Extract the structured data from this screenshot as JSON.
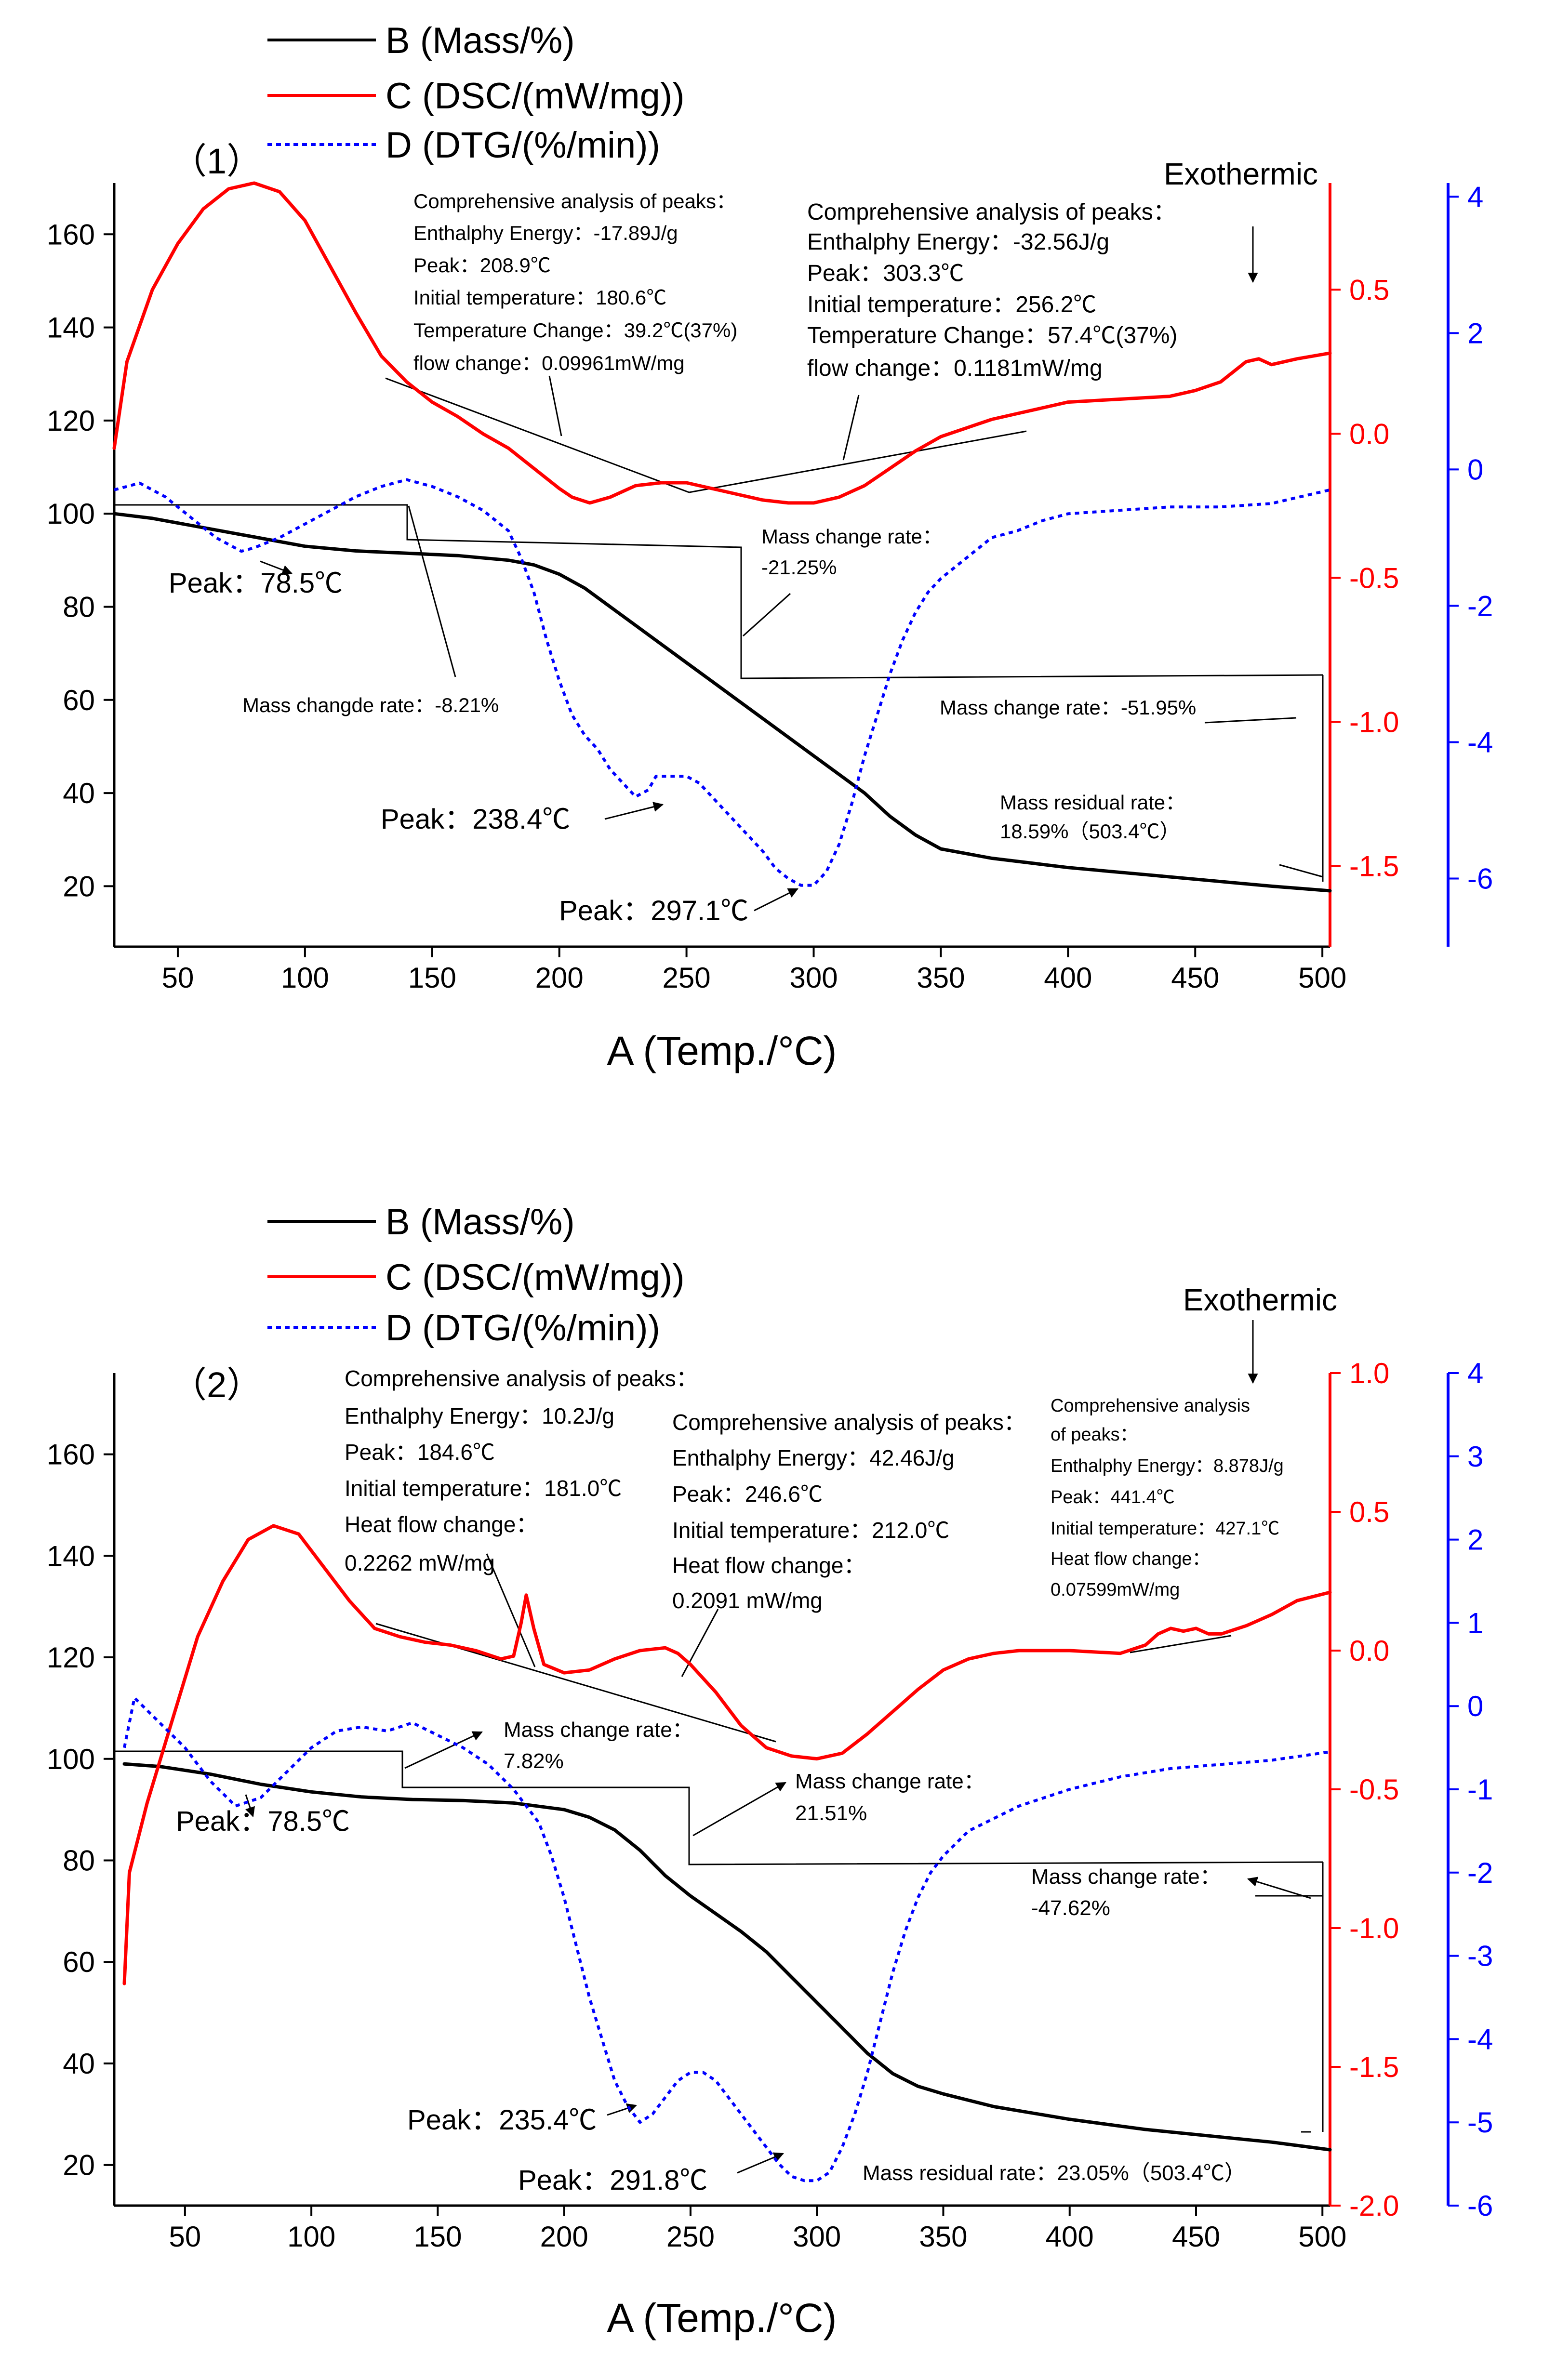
{
  "legend": {
    "B": "B (Mass/%)",
    "C": "C (DSC/(mW/mg))",
    "D": "D (DTG/(%/min))"
  },
  "colors": {
    "B": "#000000",
    "C": "#ff0000",
    "D": "#0000ff"
  },
  "chart_data": [
    {
      "type": "line",
      "panel_label": "（1）",
      "xlabel": "A (Temp./°C)",
      "xlim": [
        25,
        503
      ],
      "xticks": [
        50,
        100,
        150,
        200,
        250,
        300,
        350,
        400,
        450,
        500
      ],
      "y_left": {
        "lim": [
          7,
          171
        ],
        "ticks": [
          20,
          40,
          60,
          80,
          100,
          120,
          140,
          160
        ]
      },
      "y_right": {
        "lim": [
          -1.78,
          0.87
        ],
        "ticks": [
          "-1.5",
          "-1.0",
          "-0.5",
          "0.0",
          "0.5"
        ]
      },
      "y_right2": {
        "lim": [
          -7,
          4.2
        ],
        "ticks": [
          -6,
          -4,
          -2,
          0,
          2,
          4
        ]
      },
      "series": [
        {
          "name": "B",
          "axis": "left",
          "style": "solid",
          "x": [
            25,
            40,
            60,
            80,
            100,
            120,
            140,
            160,
            180,
            190,
            200,
            210,
            220,
            230,
            240,
            250,
            260,
            270,
            280,
            290,
            300,
            310,
            320,
            330,
            340,
            350,
            370,
            400,
            430,
            460,
            480,
            503
          ],
          "values": [
            100,
            99,
            97,
            95,
            93,
            92,
            91.5,
            91,
            90,
            89,
            87,
            84,
            80,
            76,
            72,
            68,
            64,
            60,
            56,
            52,
            48,
            44,
            40,
            35,
            31,
            28,
            26,
            24,
            22.5,
            21,
            20,
            19
          ]
        },
        {
          "name": "C",
          "axis": "right",
          "style": "solid",
          "x": [
            25,
            30,
            40,
            50,
            60,
            70,
            80,
            90,
            100,
            110,
            120,
            130,
            140,
            150,
            160,
            170,
            180,
            190,
            200,
            205,
            212,
            220,
            230,
            240,
            250,
            260,
            270,
            280,
            290,
            300,
            310,
            320,
            330,
            340,
            350,
            360,
            370,
            380,
            400,
            420,
            440,
            450,
            460,
            470,
            475,
            480,
            490,
            503
          ],
          "values": [
            -0.05,
            0.25,
            0.5,
            0.66,
            0.78,
            0.85,
            0.87,
            0.84,
            0.74,
            0.58,
            0.42,
            0.27,
            0.18,
            0.11,
            0.06,
            0.0,
            -0.05,
            -0.12,
            -0.19,
            -0.22,
            -0.24,
            -0.22,
            -0.18,
            -0.17,
            -0.17,
            -0.19,
            -0.21,
            -0.23,
            -0.24,
            -0.24,
            -0.22,
            -0.18,
            -0.12,
            -0.06,
            -0.01,
            0.02,
            0.05,
            0.07,
            0.11,
            0.12,
            0.13,
            0.15,
            0.18,
            0.25,
            0.26,
            0.24,
            0.26,
            0.28
          ]
        },
        {
          "name": "D",
          "axis": "right2",
          "style": "dotted",
          "x": [
            25,
            35,
            45,
            55,
            65,
            75,
            80,
            90,
            100,
            110,
            120,
            130,
            140,
            150,
            160,
            170,
            180,
            185,
            190,
            195,
            200,
            205,
            210,
            215,
            220,
            225,
            230,
            235,
            238,
            245,
            250,
            255,
            260,
            265,
            270,
            275,
            280,
            285,
            290,
            295,
            300,
            305,
            310,
            315,
            320,
            325,
            330,
            335,
            340,
            345,
            350,
            360,
            370,
            380,
            390,
            400,
            420,
            440,
            460,
            480,
            503
          ],
          "values": [
            -0.3,
            -0.2,
            -0.4,
            -0.7,
            -1.0,
            -1.2,
            -1.15,
            -1.0,
            -0.8,
            -0.6,
            -0.4,
            -0.25,
            -0.15,
            -0.25,
            -0.4,
            -0.6,
            -0.9,
            -1.3,
            -1.8,
            -2.5,
            -3.1,
            -3.6,
            -3.9,
            -4.1,
            -4.4,
            -4.6,
            -4.8,
            -4.7,
            -4.5,
            -4.5,
            -4.5,
            -4.6,
            -4.8,
            -5.0,
            -5.2,
            -5.4,
            -5.6,
            -5.85,
            -6.0,
            -6.1,
            -6.1,
            -5.9,
            -5.5,
            -4.9,
            -4.2,
            -3.6,
            -3.0,
            -2.5,
            -2.1,
            -1.8,
            -1.6,
            -1.3,
            -1.0,
            -0.9,
            -0.75,
            -0.65,
            -0.6,
            -0.55,
            -0.55,
            -0.5,
            -0.3
          ]
        }
      ],
      "annotations": {
        "exo": "Exothermic",
        "peak1": [
          "Comprehensive analysis of peaks：",
          "Enthalphy Energy：-17.89J/g",
          "Peak：208.9℃",
          "Initial temperature：180.6℃",
          "Temperature Change：39.2℃(37%)",
          " flow change：0.09961mW/mg"
        ],
        "peak2": [
          "Comprehensive analysis of peaks：",
          "Enthalphy Energy：-32.56J/g",
          "Peak：303.3℃",
          "Initial temperature：256.2℃",
          "Temperature Change：57.4℃(37%)",
          " flow change：0.1181mW/mg"
        ],
        "mc1": "Mass changde rate：-8.21%",
        "mc2": [
          "Mass change rate：",
          "-21.25%"
        ],
        "mc3": "Mass change rate：-51.95%",
        "resid": [
          "Mass residual rate：",
          "18.59%（503.4℃）"
        ],
        "dtg1": "Peak：78.5℃",
        "dtg2": "Peak：238.4℃",
        "dtg3": "Peak：297.1℃"
      }
    },
    {
      "type": "line",
      "panel_label": "（2）",
      "xlabel": "A (Temp./°C)",
      "xlim": [
        22,
        503
      ],
      "xticks": [
        50,
        100,
        150,
        200,
        250,
        300,
        350,
        400,
        450,
        500
      ],
      "y_left": {
        "lim": [
          12,
          176
        ],
        "ticks": [
          20,
          40,
          60,
          80,
          100,
          120,
          140,
          160
        ]
      },
      "y_right": {
        "lim": [
          -2.0,
          1.0
        ],
        "ticks": [
          "-2.0",
          "-1.5",
          "-1.0",
          "-0.5",
          "0.0",
          "0.5",
          "1.0"
        ]
      },
      "y_right2": {
        "lim": [
          -6,
          4
        ],
        "ticks": [
          -6,
          -5,
          -4,
          -3,
          -2,
          -1,
          0,
          1,
          2,
          3,
          4
        ]
      },
      "series": [
        {
          "name": "B",
          "axis": "left",
          "style": "solid",
          "x": [
            26,
            40,
            60,
            80,
            100,
            120,
            140,
            160,
            180,
            200,
            210,
            220,
            230,
            240,
            250,
            260,
            270,
            280,
            290,
            300,
            310,
            320,
            330,
            340,
            350,
            370,
            400,
            430,
            460,
            480,
            503
          ],
          "values": [
            99,
            98.5,
            97,
            95,
            93.5,
            92.5,
            92,
            91.8,
            91.3,
            90,
            88.5,
            86,
            82,
            77,
            73,
            69.5,
            66,
            62,
            57,
            52,
            47,
            42,
            38,
            35.5,
            34,
            31.5,
            29,
            27,
            25.5,
            24.5,
            23
          ]
        },
        {
          "name": "C",
          "axis": "right",
          "style": "solid",
          "x": [
            26,
            28,
            35,
            45,
            55,
            65,
            75,
            85,
            95,
            105,
            115,
            125,
            135,
            145,
            155,
            165,
            175,
            180,
            183,
            185,
            188,
            192,
            200,
            210,
            220,
            230,
            240,
            245,
            250,
            260,
            270,
            280,
            290,
            300,
            310,
            320,
            330,
            340,
            350,
            360,
            370,
            380,
            400,
            420,
            430,
            435,
            440,
            445,
            450,
            455,
            460,
            470,
            480,
            490,
            503
          ],
          "values": [
            -1.2,
            -0.8,
            -0.55,
            -0.25,
            0.05,
            0.25,
            0.4,
            0.45,
            0.42,
            0.3,
            0.18,
            0.08,
            0.05,
            0.03,
            0.02,
            0.0,
            -0.03,
            -0.02,
            0.1,
            0.2,
            0.08,
            -0.05,
            -0.08,
            -0.07,
            -0.03,
            0.0,
            0.01,
            -0.01,
            -0.05,
            -0.15,
            -0.27,
            -0.35,
            -0.38,
            -0.39,
            -0.37,
            -0.3,
            -0.22,
            -0.14,
            -0.07,
            -0.03,
            -0.01,
            0.0,
            0.0,
            -0.01,
            0.02,
            0.06,
            0.08,
            0.07,
            0.08,
            0.06,
            0.06,
            0.09,
            0.13,
            0.18,
            0.21
          ]
        },
        {
          "name": "D",
          "axis": "right2",
          "style": "dotted",
          "x": [
            26,
            30,
            40,
            50,
            60,
            70,
            80,
            90,
            100,
            110,
            120,
            130,
            140,
            150,
            160,
            170,
            180,
            190,
            195,
            200,
            205,
            210,
            215,
            220,
            225,
            230,
            235,
            240,
            245,
            250,
            255,
            260,
            265,
            270,
            275,
            280,
            285,
            290,
            295,
            300,
            305,
            310,
            315,
            320,
            325,
            330,
            335,
            340,
            345,
            350,
            360,
            380,
            400,
            420,
            440,
            460,
            480,
            503
          ],
          "values": [
            -0.5,
            0.1,
            -0.2,
            -0.5,
            -0.9,
            -1.2,
            -1.1,
            -0.8,
            -0.5,
            -0.3,
            -0.25,
            -0.3,
            -0.2,
            -0.35,
            -0.5,
            -0.7,
            -1.0,
            -1.4,
            -1.8,
            -2.3,
            -2.9,
            -3.5,
            -4.0,
            -4.5,
            -4.8,
            -5.0,
            -4.9,
            -4.7,
            -4.5,
            -4.4,
            -4.4,
            -4.5,
            -4.7,
            -4.9,
            -5.1,
            -5.3,
            -5.5,
            -5.65,
            -5.7,
            -5.7,
            -5.6,
            -5.3,
            -4.9,
            -4.4,
            -3.8,
            -3.2,
            -2.7,
            -2.3,
            -2.0,
            -1.8,
            -1.5,
            -1.2,
            -1.0,
            -0.85,
            -0.75,
            -0.7,
            -0.65,
            -0.55
          ]
        }
      ],
      "annotations": {
        "exo": "Exothermic",
        "peak1": [
          "Comprehensive analysis of peaks：",
          "Enthalphy Energy：10.2J/g",
          "Peak：184.6℃",
          "Initial temperature：181.0℃",
          "Heat flow change：",
          "0.2262 mW/mg"
        ],
        "peak2": [
          "Comprehensive analysis of peaks：",
          "Enthalphy Energy：42.46J/g",
          "Peak：246.6℃",
          "Initial temperature：212.0℃",
          "Heat flow change：",
          "0.2091 mW/mg"
        ],
        "peak3": [
          "Comprehensive analysis",
          "of peaks：",
          "Enthalphy Energy：8.878J/g",
          "Peak：441.4℃",
          "Initial temperature：427.1℃",
          "Heat flow change：",
          "0.07599mW/mg"
        ],
        "mc1": [
          "Mass change rate：",
          "7.82%"
        ],
        "mc2": [
          "Mass change rate：",
          "21.51%"
        ],
        "mc3": [
          "Mass change rate：",
          "-47.62%"
        ],
        "resid": "Mass residual rate：23.05%（503.4℃）",
        "dtg1": "Peak：78.5℃",
        "dtg2": "Peak：235.4℃",
        "dtg3": "Peak：291.8℃"
      }
    }
  ]
}
